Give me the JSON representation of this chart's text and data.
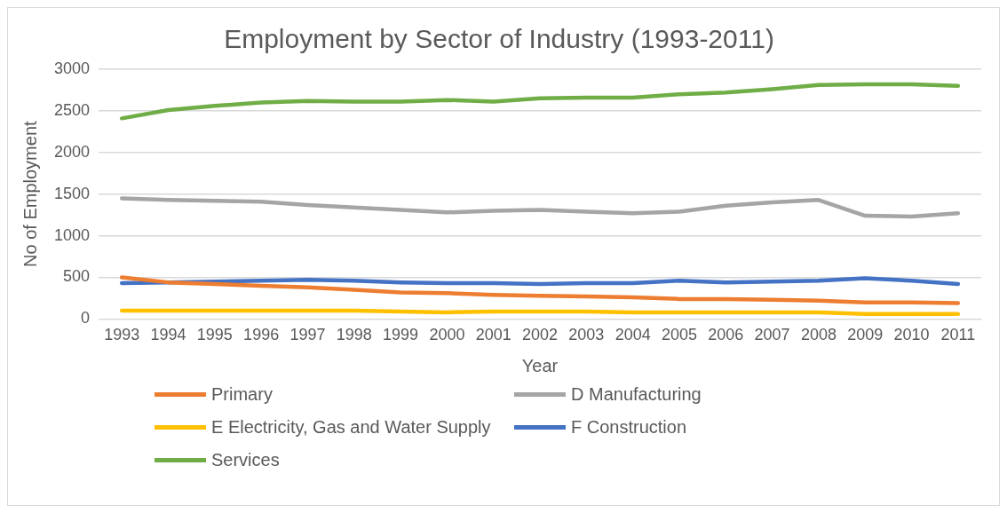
{
  "chart_data": {
    "type": "line",
    "title": "Employment by Sector of Industry (1993-2011)",
    "xlabel": "Year",
    "ylabel": "No of Employment",
    "categories": [
      "1993",
      "1994",
      "1995",
      "1996",
      "1997",
      "1998",
      "1999",
      "2000",
      "2001",
      "2002",
      "2003",
      "2004",
      "2005",
      "2006",
      "2007",
      "2008",
      "2009",
      "2010",
      "2011"
    ],
    "ylim": [
      0,
      3000
    ],
    "yticks": [
      0,
      500,
      1000,
      1500,
      2000,
      2500,
      3000
    ],
    "grid": "y",
    "legend": "bottom",
    "marker": "none",
    "series": [
      {
        "name": "Primary",
        "color": "#ed7d31",
        "values": [
          500,
          440,
          420,
          400,
          380,
          350,
          320,
          310,
          290,
          280,
          270,
          260,
          240,
          240,
          230,
          220,
          200,
          200,
          190
        ]
      },
      {
        "name": "D Manufacturing",
        "color": "#a5a5a5",
        "values": [
          1450,
          1430,
          1420,
          1410,
          1370,
          1340,
          1310,
          1280,
          1300,
          1310,
          1290,
          1270,
          1290,
          1360,
          1400,
          1430,
          1240,
          1230,
          1270
        ]
      },
      {
        "name": "E Electricity, Gas and Water Supply",
        "color": "#ffc000",
        "values": [
          100,
          100,
          100,
          100,
          100,
          100,
          90,
          80,
          90,
          90,
          90,
          80,
          80,
          80,
          80,
          80,
          60,
          60,
          60
        ]
      },
      {
        "name": "F Construction",
        "color": "#4472c4",
        "values": [
          430,
          440,
          450,
          460,
          470,
          460,
          440,
          430,
          430,
          420,
          430,
          430,
          460,
          440,
          450,
          460,
          490,
          460,
          420
        ]
      },
      {
        "name": "Services",
        "color": "#70ad47",
        "values": [
          2410,
          2510,
          2560,
          2600,
          2620,
          2610,
          2610,
          2630,
          2610,
          2650,
          2660,
          2660,
          2700,
          2720,
          2760,
          2810,
          2820,
          2820,
          2800
        ]
      }
    ]
  }
}
